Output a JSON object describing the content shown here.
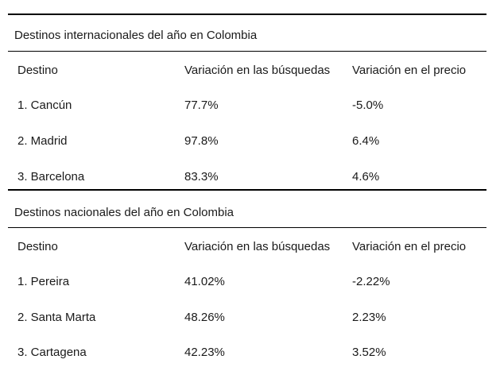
{
  "tables": [
    {
      "title": "Destinos internacionales del año en Colombia",
      "headers": [
        "Destino",
        "Variación en las búsquedas",
        "Variación en el precio"
      ],
      "rows": [
        [
          "1. Cancún",
          "77.7%",
          "-5.0%"
        ],
        [
          "2. Madrid",
          "97.8%",
          "6.4%"
        ],
        [
          "3. Barcelona",
          "83.3%",
          "4.6%"
        ]
      ]
    },
    {
      "title": "Destinos nacionales del año en Colombia",
      "headers": [
        "Destino",
        "Variación en las búsquedas",
        "Variación en el precio"
      ],
      "rows": [
        [
          "1. Pereira",
          "41.02%",
          "-2.22%"
        ],
        [
          "2. Santa Marta",
          "48.26%",
          "2.23%"
        ],
        [
          "3. Cartagena",
          "42.23%",
          "3.52%"
        ]
      ]
    }
  ]
}
